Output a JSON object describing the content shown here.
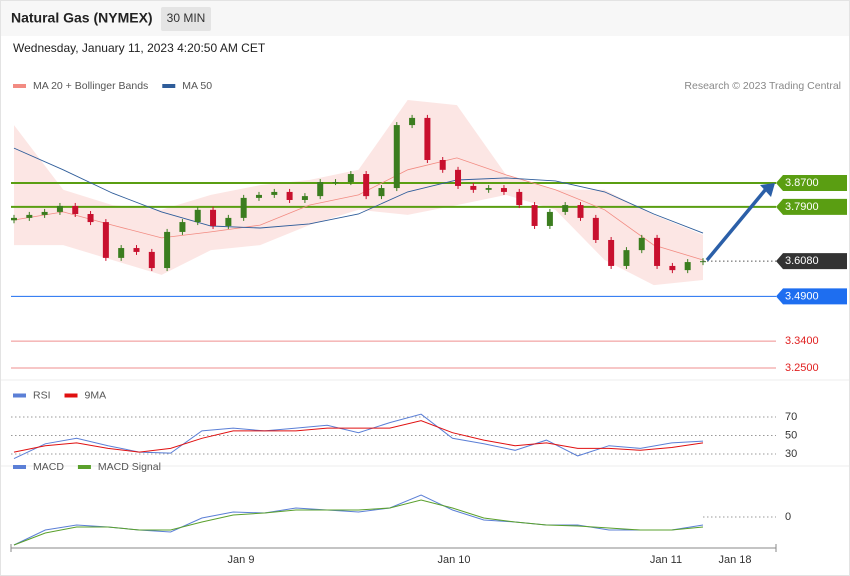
{
  "header": {
    "title": "Natural Gas (NYMEX)",
    "timeframe": "30 MIN",
    "timestamp": "Wednesday, January 11, 2023 4:20:50 AM CET"
  },
  "x_labels": [
    "Jan 9",
    "Jan 10",
    "Jan 11",
    "Jan 18"
  ],
  "chart_data": [
    {
      "type": "candlestick",
      "credit": "Research © 2023 Trading Central",
      "up_color": "#3b7d1f",
      "down_color": "#c8102e",
      "open": [
        3.745,
        3.753,
        3.763,
        3.773,
        3.793,
        3.766,
        3.739,
        3.619,
        3.652,
        3.639,
        3.585,
        3.706,
        3.739,
        3.78,
        3.726,
        3.753,
        3.82,
        3.83,
        3.84,
        3.813,
        3.826,
        3.873,
        3.873,
        3.9,
        3.826,
        3.853,
        4.064,
        4.088,
        3.947,
        3.914,
        3.86,
        3.847,
        3.853,
        3.84,
        3.796,
        3.726,
        3.773,
        3.796,
        3.753,
        3.679,
        3.592,
        3.645,
        3.686,
        3.592,
        3.578,
        3.605
      ],
      "close": [
        3.753,
        3.763,
        3.773,
        3.793,
        3.766,
        3.739,
        3.619,
        3.652,
        3.639,
        3.585,
        3.706,
        3.739,
        3.78,
        3.726,
        3.753,
        3.82,
        3.83,
        3.84,
        3.813,
        3.826,
        3.873,
        3.873,
        3.9,
        3.826,
        3.853,
        4.064,
        4.088,
        3.947,
        3.914,
        3.86,
        3.847,
        3.853,
        3.84,
        3.796,
        3.726,
        3.773,
        3.796,
        3.753,
        3.679,
        3.592,
        3.645,
        3.686,
        3.592,
        3.578,
        3.605,
        3.608
      ],
      "series": [
        {
          "name": "MA 20 + Bollinger Bands",
          "color": "#f28b82",
          "values": [
            3.746,
            3.773,
            3.729,
            3.686,
            3.706,
            3.729,
            3.796,
            3.83,
            3.914,
            3.954,
            3.897,
            3.847,
            3.78,
            3.662,
            3.612
          ],
          "upper": [
            4.064,
            3.847,
            3.796,
            3.78,
            3.83,
            3.863,
            3.88,
            3.914,
            4.148,
            4.131,
            3.897,
            3.847,
            3.847,
            3.763,
            3.696
          ],
          "lower": [
            3.662,
            3.662,
            3.612,
            3.562,
            3.645,
            3.662,
            3.729,
            3.78,
            3.763,
            3.796,
            3.83,
            3.78,
            3.612,
            3.528,
            3.545
          ]
        },
        {
          "name": "MA 50",
          "color": "#2f5d9a",
          "values": [
            3.987,
            3.914,
            3.836,
            3.773,
            3.726,
            3.719,
            3.733,
            3.766,
            3.84,
            3.88,
            3.887,
            3.877,
            3.84,
            3.766,
            3.702
          ]
        }
      ],
      "levels": [
        {
          "value": 3.87,
          "label": "3.8700",
          "color": "#5a9e12",
          "tag": true
        },
        {
          "value": 3.79,
          "label": "3.7900",
          "color": "#5a9e12",
          "tag": true
        },
        {
          "value": 3.49,
          "label": "3.4900",
          "color": "#1e6ef0",
          "tag": true
        },
        {
          "value": 3.34,
          "label": "3.3400",
          "color": "#e02020",
          "tag": false
        },
        {
          "value": 3.25,
          "label": "3.2500",
          "color": "#e02020",
          "tag": false
        }
      ],
      "last_price": {
        "value": 3.608,
        "label": "3.6080",
        "color": "#333333"
      },
      "ylim": [
        3.23,
        4.15
      ]
    },
    {
      "type": "line",
      "series": [
        {
          "name": "RSI",
          "color": "#5b7fd6",
          "values": [
            25,
            41,
            47,
            39,
            32,
            31,
            55,
            58,
            55,
            58,
            61,
            53,
            64,
            73,
            47,
            41,
            34,
            45,
            28,
            39,
            36,
            42,
            44
          ]
        },
        {
          "name": "9MA",
          "color": "#e01010",
          "values": [
            32,
            39,
            42,
            36,
            32,
            36,
            47,
            55,
            55,
            55,
            58,
            58,
            58,
            66,
            53,
            45,
            39,
            42,
            36,
            36,
            34,
            37,
            42
          ]
        }
      ],
      "ylim": [
        20,
        90
      ],
      "yticks": [
        30,
        50,
        70
      ]
    },
    {
      "type": "line",
      "series": [
        {
          "name": "MACD",
          "color": "#5b7fd6",
          "values": [
            -0.028,
            -0.013,
            -0.008,
            -0.01,
            -0.013,
            -0.015,
            -0.001,
            0.005,
            0.004,
            0.009,
            0.007,
            0.005,
            0.009,
            0.022,
            0.007,
            -0.003,
            -0.005,
            -0.008,
            -0.008,
            -0.013,
            -0.013,
            -0.013,
            -0.008
          ]
        },
        {
          "name": "MACD Signal",
          "color": "#5aa02c",
          "values": [
            -0.028,
            -0.016,
            -0.01,
            -0.01,
            -0.013,
            -0.013,
            -0.005,
            0.002,
            0.004,
            0.007,
            0.007,
            0.007,
            0.009,
            0.017,
            0.009,
            -0.001,
            -0.005,
            -0.008,
            -0.009,
            -0.011,
            -0.013,
            -0.013,
            -0.01
          ]
        }
      ],
      "ylim": [
        -0.033,
        0.047
      ],
      "yticks": [
        0
      ]
    }
  ]
}
